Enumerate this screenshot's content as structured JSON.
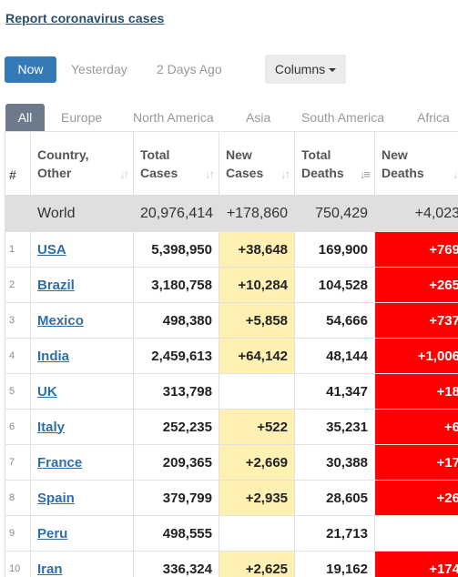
{
  "report_link": "Report coronavirus cases",
  "day_tabs": [
    "Now",
    "Yesterday",
    "2 Days Ago"
  ],
  "columns_button": "Columns",
  "regions": [
    "All",
    "Europe",
    "North America",
    "Asia",
    "South America",
    "Africa"
  ],
  "headers": {
    "index": "#",
    "country": [
      "Country,",
      "Other"
    ],
    "total_cases": [
      "Total",
      "Cases"
    ],
    "new_cases": [
      "New",
      "Cases"
    ],
    "total_deaths": [
      "Total",
      "Deaths"
    ],
    "new_deaths": [
      "New",
      "Deaths"
    ]
  },
  "world": {
    "country": "World",
    "total_cases": "20,976,414",
    "new_cases": "+178,860",
    "total_deaths": "750,429",
    "new_deaths": "+4,023"
  },
  "rows": [
    {
      "index": "1",
      "country": "USA",
      "total_cases": "5,398,950",
      "new_cases": "+38,648",
      "total_deaths": "169,900",
      "new_deaths": "+769"
    },
    {
      "index": "2",
      "country": "Brazil",
      "total_cases": "3,180,758",
      "new_cases": "+10,284",
      "total_deaths": "104,528",
      "new_deaths": "+265"
    },
    {
      "index": "3",
      "country": "Mexico",
      "total_cases": "498,380",
      "new_cases": "+5,858",
      "total_deaths": "54,666",
      "new_deaths": "+737"
    },
    {
      "index": "4",
      "country": "India",
      "total_cases": "2,459,613",
      "new_cases": "+64,142",
      "total_deaths": "48,144",
      "new_deaths": "+1,006"
    },
    {
      "index": "5",
      "country": "UK",
      "total_cases": "313,798",
      "new_cases": "",
      "total_deaths": "41,347",
      "new_deaths": "+18"
    },
    {
      "index": "6",
      "country": "Italy",
      "total_cases": "252,235",
      "new_cases": "+522",
      "total_deaths": "35,231",
      "new_deaths": "+6"
    },
    {
      "index": "7",
      "country": "France",
      "total_cases": "209,365",
      "new_cases": "+2,669",
      "total_deaths": "30,388",
      "new_deaths": "+17"
    },
    {
      "index": "8",
      "country": "Spain",
      "total_cases": "379,799",
      "new_cases": "+2,935",
      "total_deaths": "28,605",
      "new_deaths": "+26"
    },
    {
      "index": "9",
      "country": "Peru",
      "total_cases": "498,555",
      "new_cases": "",
      "total_deaths": "21,713",
      "new_deaths": ""
    },
    {
      "index": "10",
      "country": "Iran",
      "total_cases": "336,324",
      "new_cases": "+2,625",
      "total_deaths": "19,162",
      "new_deaths": "+174"
    }
  ],
  "colors": {
    "active_tab": "#337ab7",
    "active_region": "#6c7a89",
    "new_cases_highlight": "#fff0b3",
    "new_deaths_highlight": "#ff0000",
    "link": "#2f6fa7"
  }
}
